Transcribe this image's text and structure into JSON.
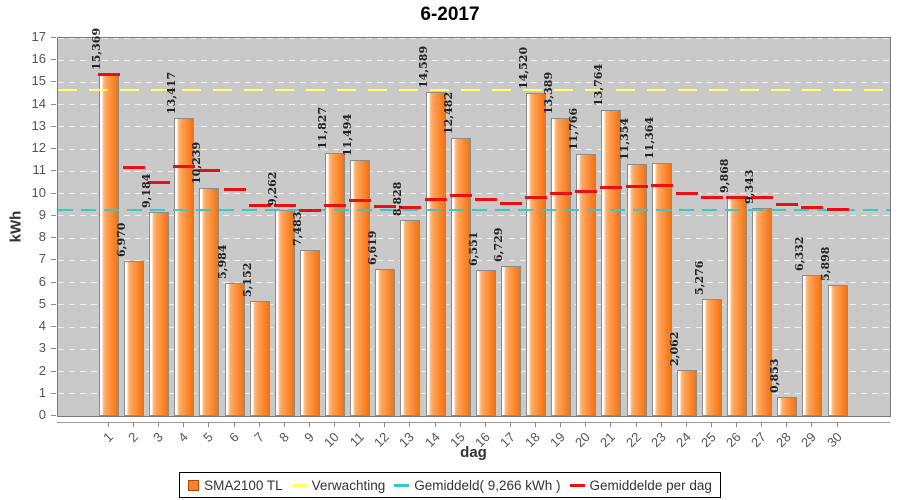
{
  "title": "6-2017",
  "chart_data": {
    "type": "bar",
    "title": "6-2017",
    "xlabel": "dag",
    "ylabel": "kWh",
    "ylim": [
      0,
      17
    ],
    "ytick_step": 1,
    "grid": true,
    "plot_bg": "#c9c9c9",
    "legend_position": "bottom",
    "categories": [
      1,
      2,
      3,
      4,
      5,
      6,
      7,
      8,
      9,
      10,
      11,
      12,
      13,
      14,
      15,
      16,
      17,
      18,
      19,
      20,
      21,
      22,
      23,
      24,
      25,
      26,
      27,
      28,
      29,
      30
    ],
    "series": [
      {
        "name": "SMA2100 TL",
        "color": "#f98230",
        "values": [
          15.369,
          6.97,
          9.184,
          13.417,
          10.239,
          5.984,
          5.152,
          9.262,
          7.483,
          11.827,
          11.494,
          6.619,
          8.828,
          14.589,
          12.482,
          6.551,
          6.729,
          14.52,
          13.389,
          11.766,
          13.764,
          11.354,
          11.364,
          2.062,
          5.276,
          9.868,
          9.343,
          0.853,
          6.332,
          5.898
        ],
        "bar_labels": [
          "15,369",
          "6,970",
          "9,184",
          "13,417",
          "10,239",
          "5,984",
          "5,152",
          "9,262",
          "7,483",
          "11,827",
          "11,494",
          "6,619",
          "8,828",
          "14,589",
          "12,482",
          "6,551",
          "6,729",
          "14,520",
          "13,389",
          "11,766",
          "13,764",
          "11,354",
          "11,364",
          "2,062",
          "5,276",
          "9,868",
          "9,343",
          "0,853",
          "6,332",
          "5,898"
        ]
      }
    ],
    "reference_lines": [
      {
        "name": "Verwachting",
        "value": 14.67,
        "color": "#ffff66",
        "style": "dashed"
      },
      {
        "name": "Gemiddeld( 9,266 kWh )",
        "value": 9.266,
        "color": "#3cc7c7",
        "style": "dashed"
      },
      {
        "name": "Gemiddelde per dag",
        "type": "running_average",
        "color": "#e81010",
        "style": "segments"
      }
    ]
  },
  "legend": {
    "items": [
      {
        "label": "SMA2100 TL",
        "marker": "square",
        "color": "#f98230"
      },
      {
        "label": "Verwachting",
        "marker": "dash",
        "color": "#ffff66"
      },
      {
        "label": "Gemiddeld( 9,266 kWh )",
        "marker": "dash",
        "color": "#3cc7c7"
      },
      {
        "label": "Gemiddelde per dag",
        "marker": "dash",
        "color": "#e81010"
      }
    ]
  },
  "axes": {
    "y_ticks": [
      "0",
      "1",
      "2",
      "3",
      "4",
      "5",
      "6",
      "7",
      "8",
      "9",
      "10",
      "11",
      "12",
      "13",
      "14",
      "15",
      "16",
      "17"
    ],
    "x_ticks": [
      "1",
      "2",
      "3",
      "4",
      "5",
      "6",
      "7",
      "8",
      "9",
      "10",
      "11",
      "12",
      "13",
      "14",
      "15",
      "16",
      "17",
      "18",
      "19",
      "20",
      "21",
      "22",
      "23",
      "24",
      "25",
      "26",
      "27",
      "28",
      "29",
      "30"
    ]
  }
}
